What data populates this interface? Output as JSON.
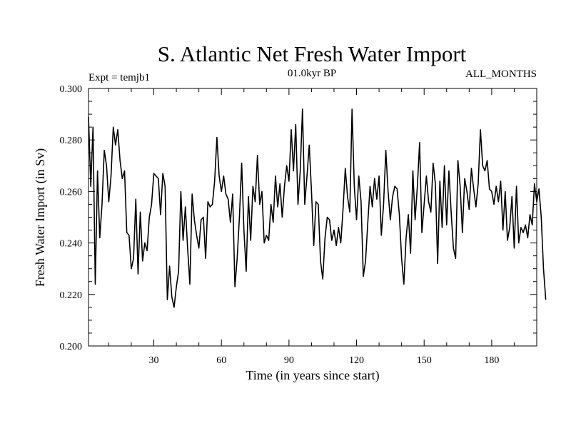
{
  "chart_data": {
    "type": "line",
    "title": "S. Atlantic Net Fresh Water Import",
    "left_label": "Expt = temjb1",
    "center_label": "01.0kyr BP",
    "right_label": "ALL_MONTHS",
    "xlabel": "Time (in years since start)",
    "ylabel": "Fresh Water Import (in Sv)",
    "xlim": [
      1,
      200
    ],
    "ylim": [
      0.2,
      0.3
    ],
    "x_ticks": [
      30,
      60,
      90,
      120,
      150,
      180
    ],
    "x_tick_labels": [
      "30",
      "60",
      "90",
      "120",
      "150",
      "180"
    ],
    "y_ticks": [
      0.2,
      0.22,
      0.24,
      0.26,
      0.28,
      0.3
    ],
    "y_tick_labels": [
      "0.200",
      "0.220",
      "0.240",
      "0.260",
      "0.280",
      "0.300"
    ],
    "grid": false,
    "series": [
      {
        "name": "Fresh Water Import",
        "x_start": 1,
        "x_step": 1,
        "values": [
          0.289,
          0.262,
          0.285,
          0.224,
          0.268,
          0.242,
          0.255,
          0.276,
          0.27,
          0.256,
          0.266,
          0.285,
          0.278,
          0.284,
          0.272,
          0.265,
          0.268,
          0.244,
          0.243,
          0.23,
          0.234,
          0.257,
          0.228,
          0.252,
          0.233,
          0.24,
          0.237,
          0.25,
          0.255,
          0.267,
          0.266,
          0.265,
          0.251,
          0.267,
          0.262,
          0.218,
          0.231,
          0.219,
          0.215,
          0.223,
          0.229,
          0.26,
          0.241,
          0.254,
          0.238,
          0.224,
          0.259,
          0.249,
          0.243,
          0.238,
          0.249,
          0.25,
          0.234,
          0.256,
          0.254,
          0.255,
          0.264,
          0.281,
          0.266,
          0.26,
          0.266,
          0.259,
          0.257,
          0.248,
          0.259,
          0.223,
          0.234,
          0.25,
          0.271,
          0.245,
          0.229,
          0.258,
          0.241,
          0.262,
          0.256,
          0.274,
          0.255,
          0.26,
          0.24,
          0.243,
          0.241,
          0.255,
          0.248,
          0.266,
          0.254,
          0.263,
          0.25,
          0.262,
          0.27,
          0.264,
          0.284,
          0.268,
          0.286,
          0.255,
          0.268,
          0.292,
          0.255,
          0.266,
          0.278,
          0.26,
          0.239,
          0.256,
          0.255,
          0.233,
          0.226,
          0.242,
          0.25,
          0.249,
          0.241,
          0.245,
          0.239,
          0.246,
          0.24,
          0.253,
          0.269,
          0.258,
          0.252,
          0.292,
          0.262,
          0.249,
          0.266,
          0.256,
          0.227,
          0.233,
          0.248,
          0.262,
          0.254,
          0.265,
          0.257,
          0.266,
          0.243,
          0.255,
          0.276,
          0.26,
          0.249,
          0.258,
          0.262,
          0.261,
          0.251,
          0.234,
          0.224,
          0.242,
          0.251,
          0.236,
          0.268,
          0.249,
          0.262,
          0.279,
          0.244,
          0.255,
          0.266,
          0.256,
          0.252,
          0.271,
          0.263,
          0.232,
          0.264,
          0.246,
          0.27,
          0.247,
          0.268,
          0.252,
          0.238,
          0.234,
          0.272,
          0.262,
          0.244,
          0.265,
          0.26,
          0.253,
          0.269,
          0.261,
          0.254,
          0.263,
          0.284,
          0.27,
          0.268,
          0.272,
          0.261,
          0.26,
          0.255,
          0.262,
          0.256,
          0.264,
          0.245,
          0.26,
          0.241,
          0.246,
          0.258,
          0.238,
          0.262,
          0.24,
          0.246,
          0.244,
          0.247,
          0.242,
          0.251,
          0.247,
          0.263,
          0.256,
          0.261,
          0.25,
          0.23,
          0.218
        ]
      }
    ]
  }
}
